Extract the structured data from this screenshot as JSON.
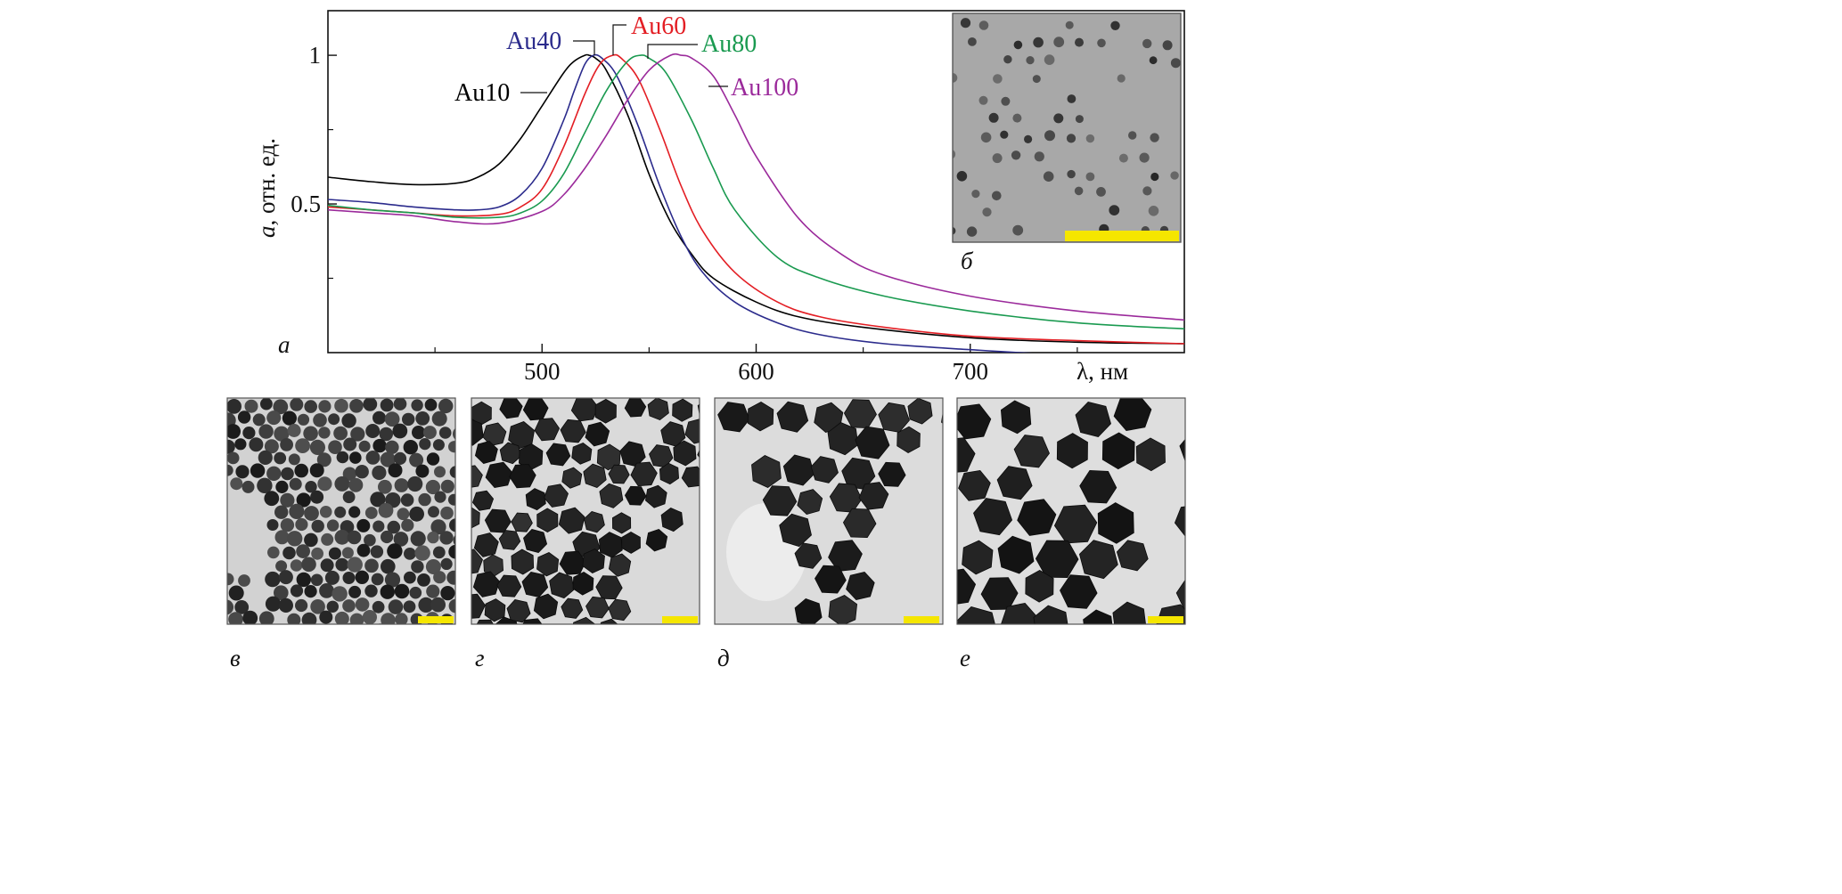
{
  "chart_data": {
    "type": "line",
    "xlabel": "λ, нм",
    "ylabel_italic": "a",
    "ylabel_rest": ", отн. ед.",
    "xlim": [
      400,
      800
    ],
    "ylim": [
      0,
      1.15
    ],
    "x_ticks": [
      500,
      600,
      700
    ],
    "x_minor_ticks": [
      450,
      550,
      650,
      750
    ],
    "y_ticks": [
      0.5,
      1
    ],
    "y_minor_ticks": [
      0.25,
      0.75
    ],
    "y_tick_labels": [
      "0.5",
      "1"
    ],
    "x_tick_labels": [
      "500",
      "600",
      "700"
    ],
    "grid": false,
    "legend": "inline labels with leader lines",
    "series": [
      {
        "name": "Au10",
        "color": "#000000",
        "x": [
          400,
          420,
          440,
          460,
          470,
          480,
          490,
          500,
          510,
          515,
          520,
          522,
          525,
          530,
          540,
          550,
          560,
          570,
          580,
          600,
          620,
          650,
          700,
          750,
          800
        ],
        "y": [
          0.59,
          0.575,
          0.565,
          0.57,
          0.59,
          0.635,
          0.72,
          0.83,
          0.94,
          0.98,
          1.0,
          1.0,
          0.99,
          0.95,
          0.8,
          0.6,
          0.44,
          0.33,
          0.25,
          0.17,
          0.12,
          0.085,
          0.05,
          0.035,
          0.03
        ]
      },
      {
        "name": "Au40",
        "color": "#2b2b8c",
        "x": [
          400,
          420,
          440,
          460,
          470,
          480,
          490,
          500,
          510,
          515,
          520,
          524,
          528,
          535,
          545,
          555,
          565,
          575,
          590,
          610,
          630,
          660,
          700,
          750,
          800
        ],
        "y": [
          0.515,
          0.505,
          0.49,
          0.48,
          0.48,
          0.49,
          0.53,
          0.62,
          0.78,
          0.88,
          0.97,
          1.0,
          0.99,
          0.93,
          0.76,
          0.56,
          0.39,
          0.27,
          0.17,
          0.1,
          0.06,
          0.03,
          0.01,
          -0.01,
          -0.02
        ]
      },
      {
        "name": "Au60",
        "color": "#e31e24",
        "x": [
          400,
          420,
          440,
          460,
          480,
          490,
          500,
          510,
          520,
          527,
          533,
          537,
          545,
          555,
          565,
          575,
          590,
          610,
          630,
          660,
          700,
          750,
          800
        ],
        "y": [
          0.49,
          0.48,
          0.47,
          0.46,
          0.465,
          0.49,
          0.55,
          0.69,
          0.87,
          0.97,
          1.0,
          0.99,
          0.92,
          0.75,
          0.56,
          0.41,
          0.27,
          0.17,
          0.12,
          0.085,
          0.055,
          0.04,
          0.03
        ]
      },
      {
        "name": "Au80",
        "color": "#1a9a50",
        "x": [
          400,
          420,
          440,
          460,
          480,
          490,
          500,
          510,
          520,
          530,
          540,
          546,
          550,
          558,
          570,
          580,
          590,
          610,
          630,
          660,
          700,
          750,
          800
        ],
        "y": [
          0.495,
          0.48,
          0.47,
          0.455,
          0.455,
          0.47,
          0.51,
          0.6,
          0.74,
          0.88,
          0.98,
          1.0,
          0.99,
          0.94,
          0.78,
          0.62,
          0.48,
          0.32,
          0.25,
          0.19,
          0.14,
          0.1,
          0.08
        ]
      },
      {
        "name": "Au100",
        "color": "#9b2a9b",
        "x": [
          400,
          420,
          440,
          460,
          480,
          500,
          510,
          520,
          530,
          540,
          550,
          560,
          565,
          570,
          580,
          590,
          600,
          620,
          640,
          660,
          700,
          750,
          800
        ],
        "y": [
          0.48,
          0.47,
          0.46,
          0.44,
          0.435,
          0.475,
          0.53,
          0.62,
          0.73,
          0.85,
          0.95,
          1.0,
          1.0,
          0.99,
          0.93,
          0.8,
          0.66,
          0.45,
          0.33,
          0.26,
          0.19,
          0.14,
          0.11
        ]
      }
    ],
    "series_labels": {
      "Au10": "Au10",
      "Au40": "Au40",
      "Au60": "Au60",
      "Au80": "Au80",
      "Au100": "Au100"
    }
  },
  "panels": {
    "a": "а",
    "b": "б",
    "v": "в",
    "g": "г",
    "d": "д",
    "e": "е"
  },
  "colors": {
    "scale_bar": "#f5e600",
    "tem_background_small": "#a9a9a9",
    "tem_background_large": "#d6d6d6",
    "particle": "#1f1f1f",
    "frame": "#555555"
  }
}
